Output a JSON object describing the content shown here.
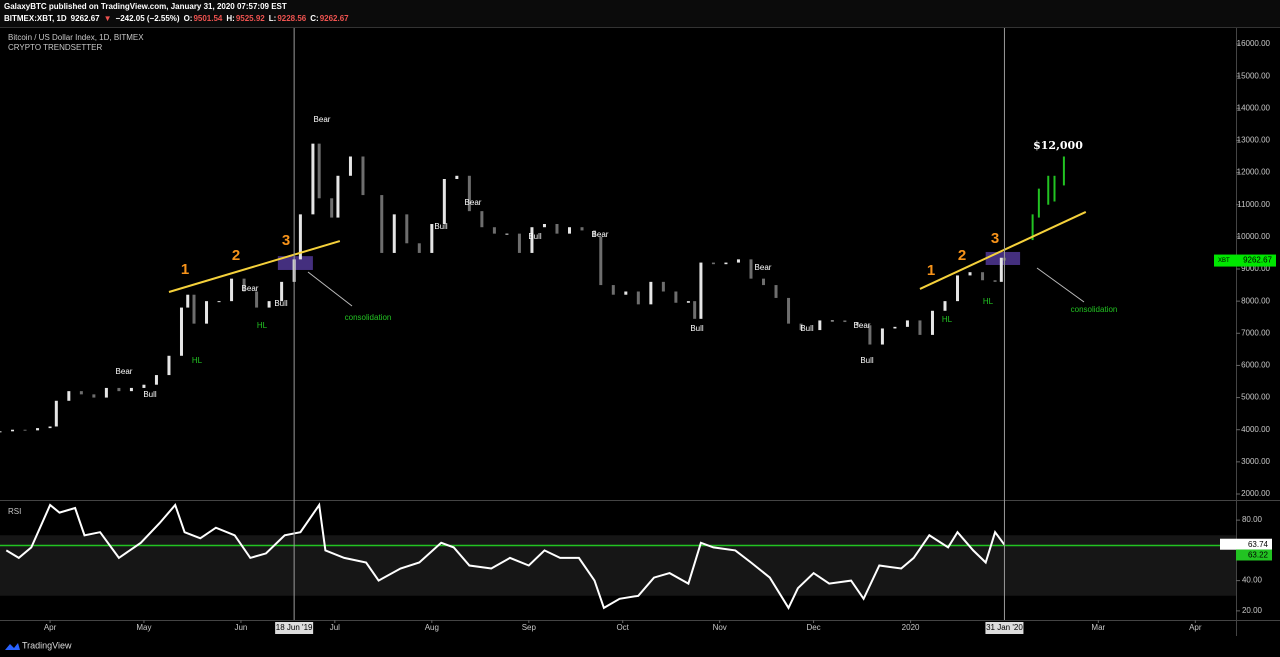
{
  "header": {
    "line1": "GalaxyBTC published on TradingView.com, January 31, 2020 07:57:09 EST",
    "symbol": "BITMEX:XBT, 1D",
    "last": "9262.67",
    "arrow": "▼",
    "change": "−242.05 (−2.55%)",
    "ohlc": [
      {
        "k": "O:",
        "v": "9501.54"
      },
      {
        "k": "H:",
        "v": "9525.92"
      },
      {
        "k": "L:",
        "v": "9228.56"
      },
      {
        "k": "C:",
        "v": "9262.67"
      }
    ]
  },
  "footer": "TradingView",
  "chart_data": [
    {
      "type": "candlestick",
      "title": "Bitcoin / US Dollar Index, 1D, BITMEX",
      "subtitle": "CRYPTO TRENDSETTER",
      "x": [
        0,
        4,
        8,
        12,
        16,
        18,
        22,
        26,
        30,
        34,
        38,
        42,
        46,
        50,
        54,
        58,
        60,
        62,
        66,
        70,
        74,
        78,
        82,
        86,
        90,
        94,
        96,
        100,
        102,
        106,
        108,
        112,
        116,
        122,
        126,
        130,
        134,
        138,
        142,
        146,
        150,
        154,
        158,
        162,
        166,
        170,
        174,
        178,
        182,
        186,
        190,
        192,
        196,
        200,
        204,
        208,
        212,
        216,
        220,
        222,
        224,
        228,
        232,
        236,
        240,
        244,
        248,
        252,
        256,
        262,
        266,
        270,
        274,
        278,
        282,
        286,
        290,
        294,
        298,
        302,
        306,
        310,
        314,
        318,
        320,
        321
      ],
      "values": [
        3950,
        4000,
        3980,
        4050,
        4100,
        4900,
        5200,
        5100,
        5000,
        5300,
        5200,
        5300,
        5400,
        5700,
        6300,
        7800,
        8200,
        7300,
        8000,
        8000,
        8700,
        8300,
        7800,
        8000,
        8600,
        9300,
        10700,
        12900,
        11200,
        10600,
        11900,
        12500,
        11300,
        9500,
        10700,
        9800,
        9500,
        10400,
        11800,
        11900,
        10800,
        10300,
        10100,
        10100,
        9500,
        10300,
        10400,
        10100,
        10300,
        10200,
        10000,
        8500,
        8200,
        8300,
        7900,
        8600,
        8300,
        7950,
        8000,
        7450,
        9200,
        9150,
        9200,
        9300,
        8700,
        8500,
        8100,
        7300,
        7100,
        7400,
        7400,
        7350,
        7250,
        6650,
        7150,
        7200,
        7400,
        6950,
        7700,
        8000,
        8800,
        8900,
        8650,
        8600,
        9350,
        9262.67
      ],
      "up_color": "#e6e6e6",
      "down_color": "#6e6e6e",
      "xlim": [
        0,
        395
      ],
      "xticks": [
        {
          "value": 16,
          "label": "Apr"
        },
        {
          "value": 46,
          "label": "May"
        },
        {
          "value": 77,
          "label": "Jun"
        },
        {
          "value": 107,
          "label": "Jul"
        },
        {
          "value": 138,
          "label": "Aug"
        },
        {
          "value": 169,
          "label": "Sep"
        },
        {
          "value": 199,
          "label": "Oct"
        },
        {
          "value": 230,
          "label": "Nov"
        },
        {
          "value": 260,
          "label": "Dec"
        },
        {
          "value": 291,
          "label": "2020"
        },
        {
          "value": 351,
          "label": "Mar"
        },
        {
          "value": 382,
          "label": "Apr"
        }
      ],
      "ylim": [
        2000,
        16000
      ],
      "yticks": [
        {
          "value": 2000,
          "label": "2000.00"
        },
        {
          "value": 3000,
          "label": "3000.00"
        },
        {
          "value": 4000,
          "label": "4000.00"
        },
        {
          "value": 5000,
          "label": "5000.00"
        },
        {
          "value": 6000,
          "label": "6000.00"
        },
        {
          "value": 7000,
          "label": "7000.00"
        },
        {
          "value": 8000,
          "label": "8000.00"
        },
        {
          "value": 9000,
          "label": "9000.00"
        },
        {
          "value": 10000,
          "label": "10000.00"
        },
        {
          "value": 11000,
          "label": "11000.00"
        },
        {
          "value": 12000,
          "label": "12000.00"
        },
        {
          "value": 13000,
          "label": "13000.00"
        },
        {
          "value": 14000,
          "label": "14000.00"
        },
        {
          "value": 15000,
          "label": "15000.00"
        },
        {
          "value": 16000,
          "label": "16000.00"
        }
      ],
      "last_label": {
        "name": "XBT",
        "value": 9262.67,
        "label": "9262.67",
        "color": "#00e600"
      },
      "projection": {
        "color": "#22c322",
        "x": [
          330,
          332,
          335,
          337,
          340
        ],
        "low": [
          9900,
          10600,
          11000,
          11100,
          11600
        ],
        "high": [
          10700,
          11500,
          11900,
          11900,
          12500
        ]
      },
      "trendlines": {
        "color": "#f5d13b",
        "lines": [
          {
            "x": [
              54,
              108.6
            ],
            "y": [
              8285,
              9870
            ]
          },
          {
            "x": [
              294,
              347
            ],
            "y": [
              8380,
              10775
            ]
          }
        ]
      },
      "boxes": {
        "color": "#5b3fa8",
        "items": [
          {
            "x": [
              88.8,
              100
            ],
            "y": [
              8970,
              9400
            ]
          },
          {
            "x": [
              315,
              326
            ],
            "y": [
              9125,
              9530
            ]
          }
        ]
      },
      "crosshairs": [
        {
          "x": 94,
          "label": "18 Jun '19"
        },
        {
          "x": 321,
          "label": "31 Jan '20"
        }
      ],
      "annotations": [
        {
          "text": "1",
          "color": "#f7931a"
        },
        {
          "text": "2",
          "color": "#f7931a"
        },
        {
          "text": "3",
          "color": "#f7931a"
        },
        {
          "text": "1",
          "color": "#f7931a"
        },
        {
          "text": "2",
          "color": "#f7931a"
        },
        {
          "text": "3",
          "color": "#f7931a"
        },
        {
          "text": "Bear",
          "color": "#ffffff"
        },
        {
          "text": "Bull",
          "color": "#ffffff"
        },
        {
          "text": "Bear",
          "color": "#ffffff"
        },
        {
          "text": "Bull",
          "color": "#ffffff"
        },
        {
          "text": "Bear",
          "color": "#ffffff"
        },
        {
          "text": "Bull",
          "color": "#ffffff"
        },
        {
          "text": "Bear",
          "color": "#ffffff"
        },
        {
          "text": "Bull",
          "color": "#ffffff"
        },
        {
          "text": "Bear",
          "color": "#ffffff"
        },
        {
          "text": "Bull",
          "color": "#ffffff"
        },
        {
          "text": "Bear",
          "color": "#ffffff"
        },
        {
          "text": "Bull",
          "color": "#ffffff"
        },
        {
          "text": "Bear",
          "color": "#ffffff"
        },
        {
          "text": "Bull",
          "color": "#ffffff"
        },
        {
          "text": "HL",
          "color": "#22c322"
        },
        {
          "text": "HL",
          "color": "#22c322"
        },
        {
          "text": "HL",
          "color": "#22c322"
        },
        {
          "text": "HL",
          "color": "#22c322"
        },
        {
          "text": "consolidation",
          "color": "#22c322"
        },
        {
          "text": "consolidation",
          "color": "#22c322"
        },
        {
          "text": "$12,000",
          "color": "#ffffff"
        }
      ]
    },
    {
      "type": "line",
      "title": "RSI",
      "color": "#ffffff",
      "x": [
        2,
        6,
        10,
        16,
        19,
        24,
        27,
        32,
        38,
        45,
        51,
        56,
        59,
        64,
        69,
        75,
        80,
        85,
        91,
        96,
        102,
        104,
        110,
        117,
        121,
        128,
        134,
        141,
        145,
        150,
        157,
        163,
        169,
        174,
        179,
        185,
        190,
        193,
        198,
        204,
        209,
        214,
        220,
        224,
        228,
        235,
        240,
        246,
        252,
        255,
        260,
        265,
        272,
        276,
        281,
        288,
        292,
        297,
        303,
        306,
        311,
        315,
        318,
        321
      ],
      "values": [
        60,
        55,
        62,
        90,
        85,
        88,
        70,
        72,
        55,
        65,
        78,
        90,
        72,
        68,
        75,
        70,
        55,
        58,
        70,
        72,
        90,
        60,
        55,
        52,
        40,
        48,
        52,
        65,
        62,
        50,
        48,
        55,
        50,
        60,
        55,
        55,
        40,
        22,
        28,
        30,
        42,
        45,
        38,
        65,
        62,
        60,
        52,
        42,
        22,
        35,
        45,
        38,
        40,
        28,
        50,
        48,
        55,
        70,
        62,
        72,
        60,
        52,
        72,
        63.74
      ],
      "value_label": "63.74",
      "level": {
        "value": 63.22,
        "label": "63.22",
        "color": "#22c322"
      },
      "band": [
        30,
        70
      ],
      "xlim": [
        0,
        395
      ],
      "ylim": [
        10,
        90
      ],
      "yticks": [
        {
          "value": 20,
          "label": "20.00"
        },
        {
          "value": 40,
          "label": "40.00"
        },
        {
          "value": 80,
          "label": "80.00"
        }
      ]
    }
  ]
}
